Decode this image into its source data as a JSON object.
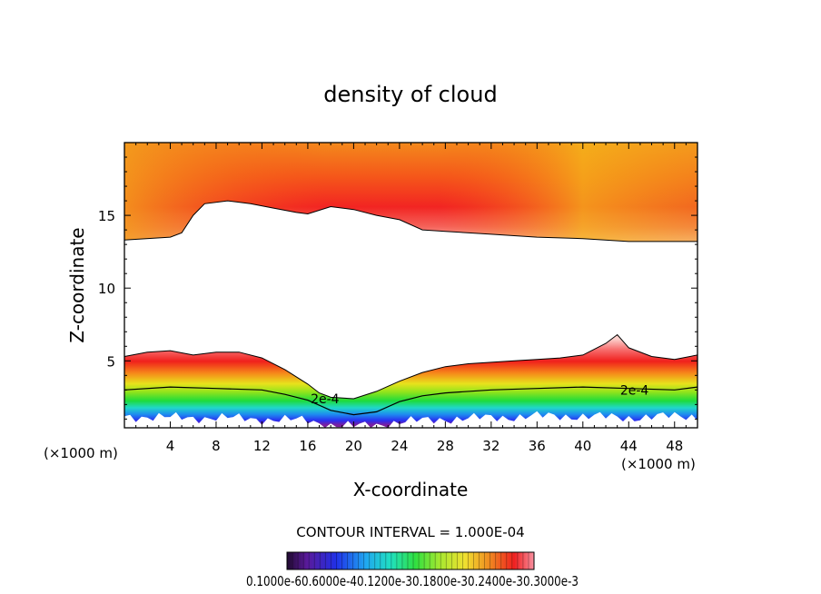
{
  "chart_data": {
    "type": "heatmap",
    "title": "density of cloud",
    "xlabel": "X-coordinate",
    "ylabel": "Z-coordinate",
    "x_unit_left": "(×1000 m)",
    "x_unit_right": "(×1000 m)",
    "xlim": [
      0,
      50
    ],
    "ylim": [
      0.4,
      20
    ],
    "x_ticks": [
      4,
      8,
      12,
      16,
      20,
      24,
      28,
      32,
      36,
      40,
      44,
      48
    ],
    "y_ticks": [
      5,
      10,
      15
    ],
    "contour_interval_text": "CONTOUR INTERVAL = 1.000E-04",
    "contour_labels": [
      {
        "text": "2e-4",
        "x": 17.5,
        "z": 2.4
      },
      {
        "text": "2e-4",
        "x": 44.5,
        "z": 3.0
      }
    ],
    "colorbar_labels_text": "0.1000e-6,0.6000e-4,0.1200e-3,0.1800e-3,0.2400e-3,0.3000e-3",
    "lower_cloud_top": [
      [
        0,
        5.3
      ],
      [
        2,
        5.6
      ],
      [
        4,
        5.7
      ],
      [
        6,
        5.4
      ],
      [
        8,
        5.6
      ],
      [
        10,
        5.6
      ],
      [
        12,
        5.2
      ],
      [
        14,
        4.4
      ],
      [
        16,
        3.4
      ],
      [
        17,
        2.8
      ],
      [
        18,
        2.5
      ],
      [
        20,
        2.4
      ],
      [
        22,
        2.9
      ],
      [
        24,
        3.6
      ],
      [
        26,
        4.2
      ],
      [
        28,
        4.6
      ],
      [
        30,
        4.8
      ],
      [
        32,
        4.9
      ],
      [
        34,
        5.0
      ],
      [
        36,
        5.1
      ],
      [
        38,
        5.2
      ],
      [
        40,
        5.4
      ],
      [
        42,
        6.2
      ],
      [
        43,
        6.8
      ],
      [
        44,
        5.9
      ],
      [
        46,
        5.3
      ],
      [
        48,
        5.1
      ],
      [
        50,
        5.4
      ]
    ],
    "upper_cloud_base": [
      [
        0,
        13.3
      ],
      [
        4,
        13.5
      ],
      [
        5,
        13.8
      ],
      [
        6,
        15.0
      ],
      [
        7,
        15.8
      ],
      [
        9,
        16.0
      ],
      [
        11,
        15.8
      ],
      [
        13,
        15.5
      ],
      [
        15,
        15.2
      ],
      [
        16,
        15.1
      ],
      [
        18,
        15.6
      ],
      [
        20,
        15.4
      ],
      [
        22,
        15.0
      ],
      [
        24,
        14.7
      ],
      [
        26,
        14.0
      ],
      [
        28,
        13.9
      ],
      [
        32,
        13.7
      ],
      [
        36,
        13.5
      ],
      [
        40,
        13.4
      ],
      [
        44,
        13.2
      ],
      [
        50,
        13.2
      ]
    ],
    "contour_2e4": [
      [
        0,
        3.0
      ],
      [
        4,
        3.2
      ],
      [
        8,
        3.1
      ],
      [
        12,
        3.0
      ],
      [
        14,
        2.7
      ],
      [
        16,
        2.3
      ],
      [
        18,
        1.6
      ],
      [
        20,
        1.3
      ],
      [
        22,
        1.5
      ],
      [
        24,
        2.2
      ],
      [
        26,
        2.6
      ],
      [
        28,
        2.8
      ],
      [
        32,
        3.0
      ],
      [
        36,
        3.1
      ],
      [
        40,
        3.2
      ],
      [
        44,
        3.1
      ],
      [
        48,
        3.0
      ],
      [
        50,
        3.2
      ]
    ],
    "cloud_floor": [
      [
        0,
        1.2
      ],
      [
        4,
        1.1
      ],
      [
        8,
        1.1
      ],
      [
        12,
        1.0
      ],
      [
        16,
        0.9
      ],
      [
        18,
        0.6
      ],
      [
        20,
        0.5
      ],
      [
        22,
        0.6
      ],
      [
        24,
        0.8
      ],
      [
        28,
        1.0
      ],
      [
        32,
        1.1
      ],
      [
        36,
        1.2
      ],
      [
        40,
        1.2
      ],
      [
        44,
        1.1
      ],
      [
        48,
        1.2
      ],
      [
        50,
        1.2
      ]
    ]
  }
}
